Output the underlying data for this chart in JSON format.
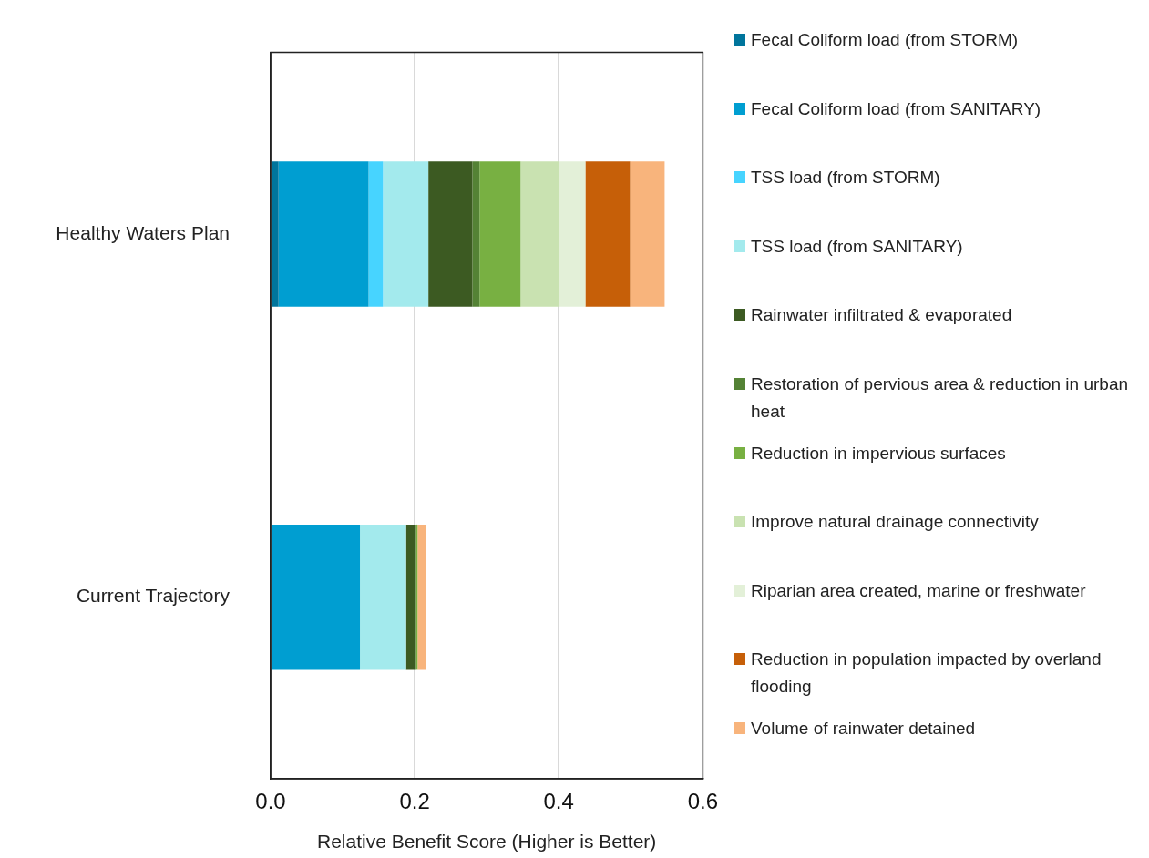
{
  "chart_data": {
    "type": "bar",
    "orientation": "horizontal",
    "stacked": true,
    "xlabel": "Relative Benefit Score (Higher is Better)",
    "categories": [
      "Healthy Waters Plan",
      "Current Trajectory"
    ],
    "xlim": [
      0,
      0.6
    ],
    "xticks": [
      {
        "value": 0,
        "label": "0.0"
      },
      {
        "value": 0.2,
        "label": "0.2"
      },
      {
        "value": 0.4,
        "label": "0.4"
      },
      {
        "value": 0.6,
        "label": "0.6"
      }
    ],
    "grid": "x",
    "legend": "right",
    "series": [
      {
        "name": "Fecal Coliform load (from STORM)",
        "color": "#00759c",
        "values": [
          0.011,
          0.002
        ]
      },
      {
        "name": "Fecal Coliform load (from SANITARY)",
        "color": "#009ed1",
        "values": [
          0.125,
          0.122
        ]
      },
      {
        "name": "TSS load (from STORM)",
        "color": "#47d4ff",
        "values": [
          0.02,
          0
        ]
      },
      {
        "name": "TSS load (from SANITARY)",
        "color": "#a3eaed",
        "values": [
          0.063,
          0.064
        ]
      },
      {
        "name": "Rainwater infiltrated & evaporated",
        "color": "#3c5a22",
        "values": [
          0.061,
          0.012
        ]
      },
      {
        "name": "Restoration of pervious area & reduction in urban heat",
        "color": "#548235",
        "values": [
          0.01,
          0.002
        ]
      },
      {
        "name": "Reduction in impervious surfaces",
        "color": "#78b042",
        "values": [
          0.057,
          0.002
        ]
      },
      {
        "name": "Improve natural drainage connectivity",
        "color": "#c9e2b1",
        "values": [
          0.053,
          0
        ]
      },
      {
        "name": "Riparian area created, marine or freshwater",
        "color": "#e3f0d8",
        "values": [
          0.037,
          0
        ]
      },
      {
        "name": "Reduction in population impacted by overland flooding",
        "color": "#c65f08",
        "values": [
          0.062,
          0
        ]
      },
      {
        "name": "Volume of rainwater detained",
        "color": "#f8b47c",
        "values": [
          0.048,
          0.012
        ]
      }
    ]
  }
}
